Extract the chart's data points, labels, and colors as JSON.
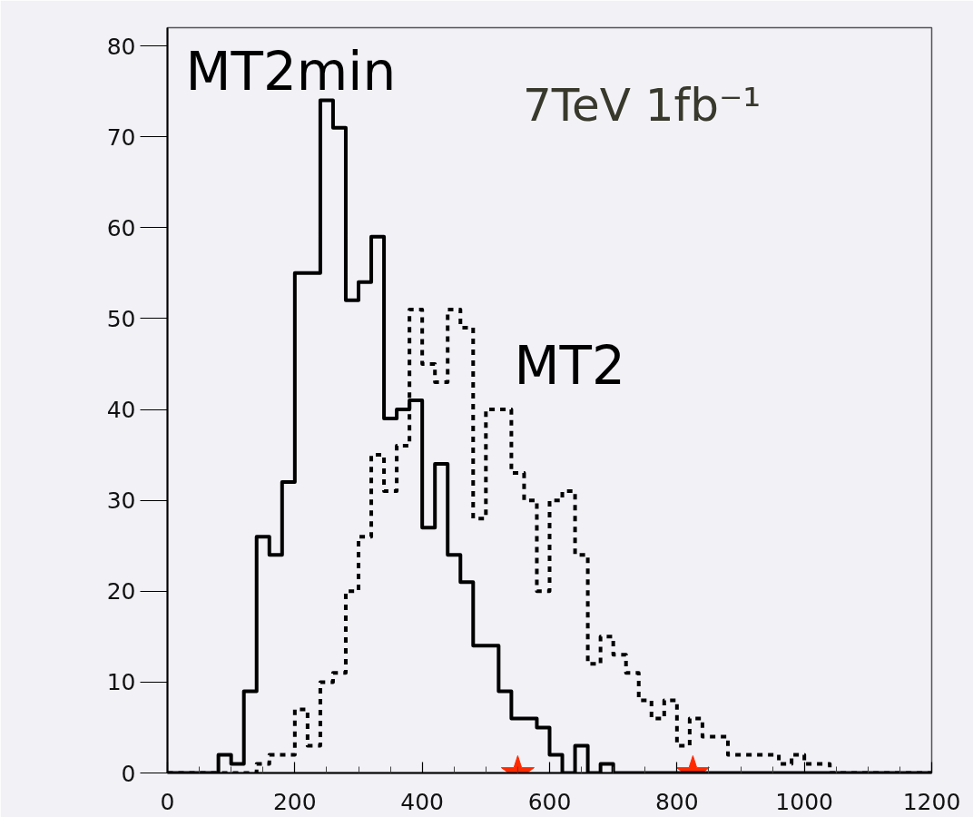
{
  "chart_data": {
    "type": "histogram",
    "bins": [
      0,
      20,
      40,
      60,
      80,
      100,
      120,
      140,
      160,
      180,
      200,
      220,
      240,
      260,
      280,
      300,
      320,
      340,
      360,
      380,
      400,
      420,
      440,
      460,
      480,
      500,
      520,
      540,
      560,
      580,
      600,
      620,
      640,
      660,
      680,
      700,
      720,
      740,
      760,
      780,
      800,
      820,
      840,
      860,
      880,
      900,
      920,
      940,
      960,
      980,
      1000,
      1020,
      1040,
      1060,
      1080,
      1100,
      1120,
      1140,
      1160,
      1180,
      1200
    ],
    "series": [
      {
        "name": "MT2min",
        "color": "#000000",
        "line_style": "solid",
        "values": [
          0,
          0,
          0,
          0,
          2,
          1,
          9,
          26,
          24,
          32,
          55,
          55,
          74,
          71,
          52,
          54,
          59,
          39,
          40,
          41,
          27,
          34,
          24,
          21,
          14,
          14,
          9,
          6,
          6,
          5,
          2,
          0,
          3,
          0,
          1,
          0,
          0,
          0,
          0,
          0,
          0,
          0,
          0,
          0,
          0,
          0,
          0,
          0,
          0,
          0,
          0,
          0,
          0,
          0,
          0,
          0,
          0,
          0,
          0,
          0
        ]
      },
      {
        "name": "MT2",
        "color": "#000000",
        "line_style": "dashed",
        "values": [
          0,
          0,
          0,
          0,
          0,
          0,
          0,
          1,
          2,
          2,
          7,
          3,
          10,
          11,
          20,
          26,
          35,
          31,
          36,
          51,
          45,
          43,
          51,
          49,
          28,
          40,
          40,
          33,
          30,
          20,
          30,
          31,
          24,
          12,
          15,
          13,
          11,
          8,
          6,
          8,
          3,
          6,
          4,
          4,
          2,
          2,
          2,
          2,
          1,
          2,
          1,
          1,
          0,
          0,
          0,
          0,
          0,
          0,
          0,
          0
        ]
      },
      {
        "type": "scatter",
        "marker": "star",
        "color": "#ff2a00",
        "x": [
          550,
          825
        ],
        "values": [
          0,
          0
        ]
      }
    ],
    "annotations": [
      "7TeV  1fb⁻¹"
    ],
    "xlim": [
      0,
      1200
    ],
    "ylim": [
      0,
      82
    ],
    "xticks": [
      0,
      200,
      400,
      600,
      800,
      1000,
      1200
    ],
    "yticks": [
      0,
      10,
      20,
      30,
      40,
      50,
      60,
      70,
      80
    ],
    "grid": false
  }
}
